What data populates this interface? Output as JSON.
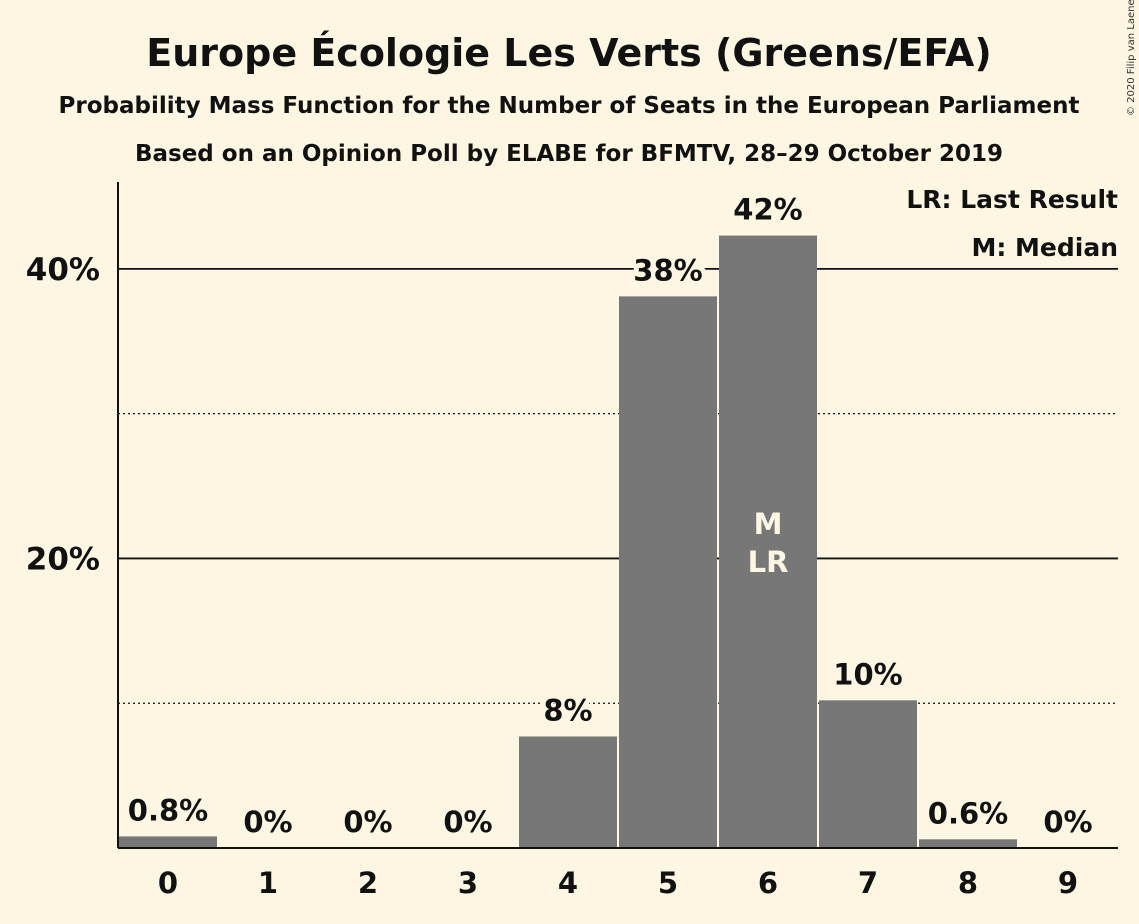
{
  "colors": {
    "background": "#fdf6e3",
    "bar": "#777777",
    "text": "#111111",
    "inbar_text": "#fdf6e3"
  },
  "copyright": "© 2020 Filip van Laenen",
  "chart_data": {
    "type": "bar",
    "title": "Europe Écologie Les Verts (Greens/EFA)",
    "subtitle": "Probability Mass Function for the Number of Seats in the European Parliament",
    "subtitle2": "Based on an Opinion Poll by ELABE for BFMTV, 28–29 October 2019",
    "categories": [
      "0",
      "1",
      "2",
      "3",
      "4",
      "5",
      "6",
      "7",
      "8",
      "9"
    ],
    "values": [
      0.8,
      0,
      0,
      0,
      7.7,
      38.1,
      42.3,
      10.2,
      0.6,
      0
    ],
    "data_labels": [
      "0.8%",
      "0%",
      "0%",
      "0%",
      "8%",
      "38%",
      "42%",
      "10%",
      "0.6%",
      "0%"
    ],
    "ylim": [
      0,
      46
    ],
    "yticks": [
      {
        "value": 20,
        "label": "20%"
      },
      {
        "value": 40,
        "label": "40%"
      }
    ],
    "dotted_gridlines": [
      10,
      30
    ],
    "median_label": "M",
    "last_result_label": "LR",
    "marked_category": "6",
    "legend": [
      "LR: Last Result",
      "M: Median"
    ],
    "legend_position": "top-right"
  }
}
